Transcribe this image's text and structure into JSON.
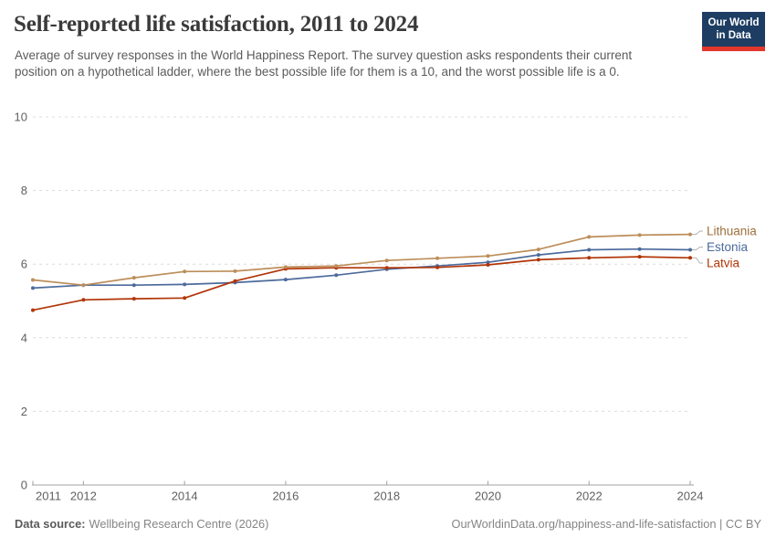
{
  "header": {
    "title": "Self-reported life satisfaction, 2011 to 2024",
    "subtitle": "Average of survey responses in the World Happiness Report. The survey question asks respondents their current position on a hypothetical ladder, where the best possible life for them is a 10, and the worst possible life is a 0.",
    "logo": {
      "line1": "Our World",
      "line2": "in Data",
      "bg_color": "#1d3d63",
      "accent_color": "#e2372b"
    }
  },
  "chart_data": {
    "type": "line",
    "title": "Self-reported life satisfaction, 2011 to 2024",
    "x": [
      2011,
      2012,
      2013,
      2014,
      2015,
      2016,
      2017,
      2018,
      2019,
      2020,
      2021,
      2022,
      2023,
      2024
    ],
    "series": [
      {
        "name": "Lithuania",
        "color": "#BC8E5A",
        "label_color": "#9D6F3C",
        "values": [
          5.57,
          5.43,
          5.63,
          5.8,
          5.81,
          5.92,
          5.95,
          6.1,
          6.16,
          6.22,
          6.4,
          6.74,
          6.79,
          6.81
        ]
      },
      {
        "name": "Estonia",
        "color": "#4C6A9C",
        "label_color": "#4C6A9C",
        "values": [
          5.35,
          5.43,
          5.43,
          5.45,
          5.5,
          5.58,
          5.7,
          5.86,
          5.95,
          6.05,
          6.25,
          6.39,
          6.41,
          6.39
        ]
      },
      {
        "name": "Latvia",
        "color": "#B13507",
        "label_color": "#B13507",
        "values": [
          4.75,
          5.03,
          5.06,
          5.08,
          5.54,
          5.87,
          5.9,
          5.9,
          5.91,
          5.98,
          6.12,
          6.17,
          6.2,
          6.17
        ]
      }
    ],
    "xlabel": "",
    "ylabel": "",
    "ylim": [
      0,
      10
    ],
    "yticks": [
      0,
      2,
      4,
      6,
      8,
      10
    ],
    "xticks": [
      2011,
      2012,
      2014,
      2016,
      2018,
      2020,
      2022,
      2024
    ],
    "grid": "horizontal-dashed",
    "grid_color": "#dcdcdc",
    "axis_color": "#a1a1a1",
    "tick_label_color": "#606060",
    "legend_position": "right-of-line-ends"
  },
  "footer": {
    "datasource_label": "Data source:",
    "datasource_value": "Wellbeing Research Centre (2026)",
    "link": "OurWorldinData.org/happiness-and-life-satisfaction | CC BY"
  }
}
